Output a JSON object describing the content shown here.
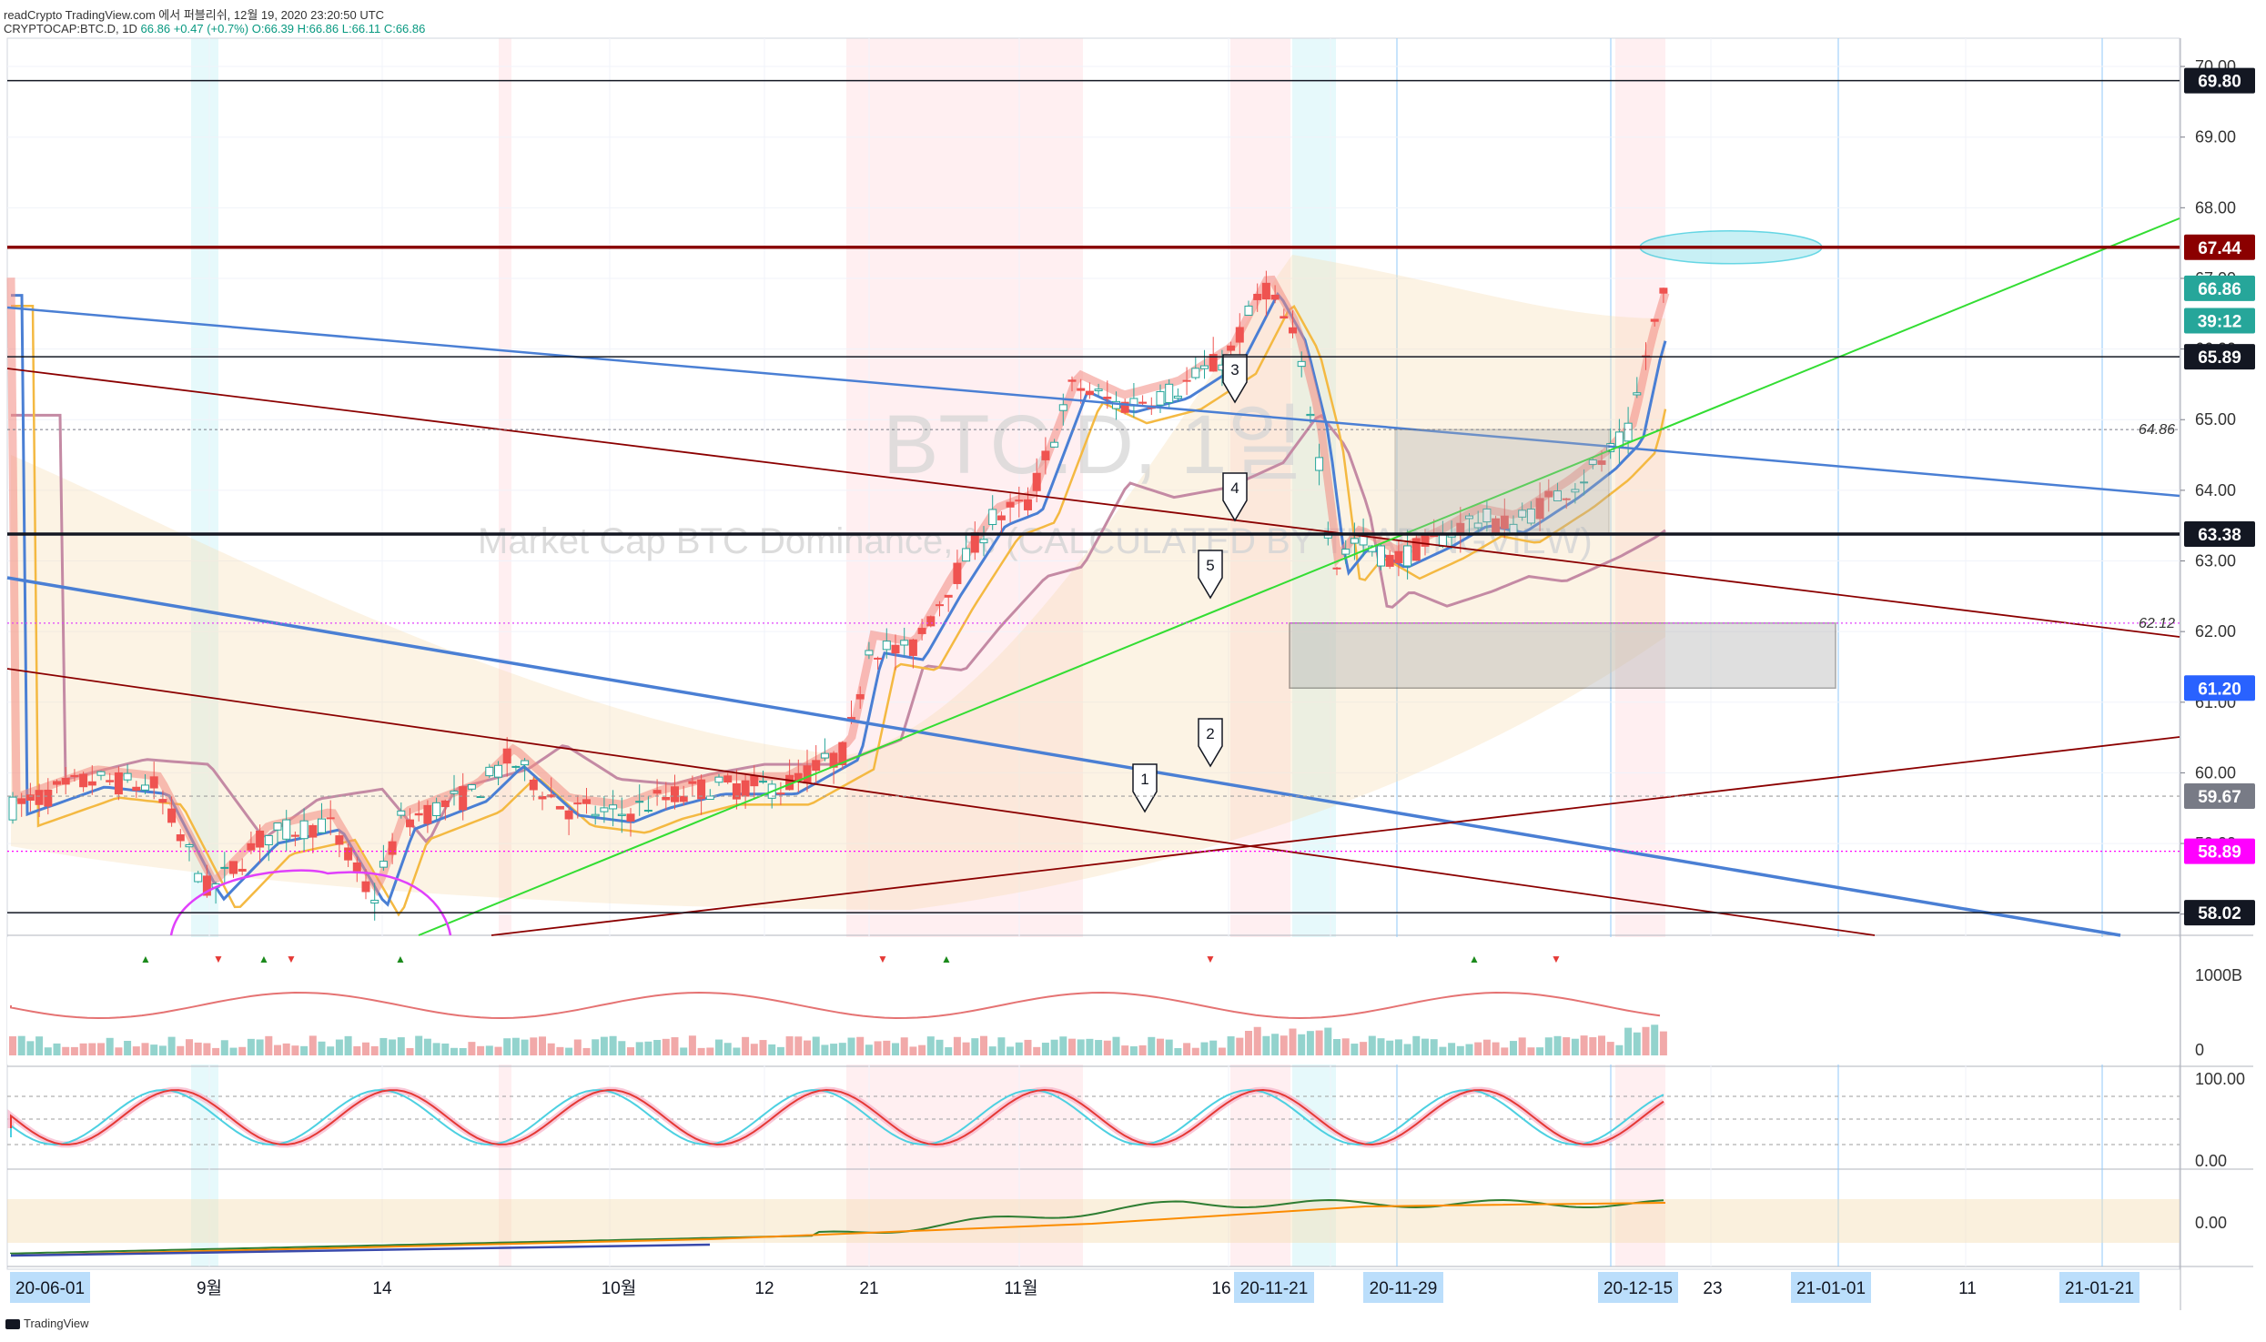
{
  "header": {
    "line1": "readCrypto TradingView.com 에서 퍼블리쉬, 12월 19, 2020 23:20:50 UTC",
    "symbol": "CRYPTOCAP:BTC.D, 1D",
    "last": "66.86",
    "change": "+0.47 (+0.7%)",
    "open": "O:66.39",
    "high": "H:66.86",
    "low": "L:66.11",
    "close": "C:66.86"
  },
  "watermark": {
    "symbol": "BTC.D, 1일",
    "description": "Market Cap BTC Dominance, % (CALCULATED BY TRADINGVIEW)"
  },
  "price_scale": {
    "ticks": [
      "70.00",
      "69.00",
      "68.00",
      "67.00",
      "66.00",
      "65.00",
      "64.00",
      "63.00",
      "62.00",
      "61.00",
      "60.00",
      "59.00",
      "58.00"
    ],
    "labels": [
      {
        "text": "69.80",
        "value": 69.8,
        "bg": "#131722",
        "fg": "#ffffff"
      },
      {
        "text": "67.44",
        "value": 67.44,
        "bg": "#8b0000",
        "fg": "#ffffff"
      },
      {
        "text": "66.86",
        "value": 66.86,
        "bg": "#26a69a",
        "fg": "#ffffff"
      },
      {
        "text": "39:12",
        "value": 66.4,
        "bg": "#26a69a",
        "fg": "#ffffff"
      },
      {
        "text": "65.89",
        "value": 65.89,
        "bg": "#131722",
        "fg": "#ffffff"
      },
      {
        "text": "63.38",
        "value": 63.38,
        "bg": "#131722",
        "fg": "#ffffff"
      },
      {
        "text": "61.20",
        "value": 61.2,
        "bg": "#2962ff",
        "fg": "#ffffff"
      },
      {
        "text": "59.67",
        "value": 59.67,
        "bg": "#787b86",
        "fg": "#ffffff"
      },
      {
        "text": "58.89",
        "value": 58.89,
        "bg": "#ff00ff",
        "fg": "#ffffff"
      },
      {
        "text": "58.02",
        "value": 58.02,
        "bg": "#131722",
        "fg": "#ffffff"
      }
    ],
    "inline_labels": [
      {
        "text": "64.86",
        "value": 64.86
      },
      {
        "text": "62.12",
        "value": 62.12
      }
    ]
  },
  "volume_scale": [
    "1000B",
    "0"
  ],
  "stoch_scale": [
    "100.00",
    "0.00"
  ],
  "bottom_scale": [
    "0.00"
  ],
  "time_axis": [
    {
      "text": "20-06-01",
      "highlight": true
    },
    {
      "text": "9월",
      "highlight": false
    },
    {
      "text": "14",
      "highlight": false
    },
    {
      "text": "10월",
      "highlight": false
    },
    {
      "text": "12",
      "highlight": false
    },
    {
      "text": "21",
      "highlight": false
    },
    {
      "text": "11월",
      "highlight": false
    },
    {
      "text": "16",
      "highlight": false
    },
    {
      "text": "20-11-21",
      "highlight": true
    },
    {
      "text": "20-11-29",
      "highlight": true
    },
    {
      "text": "20-12-15",
      "highlight": true
    },
    {
      "text": "23",
      "highlight": false
    },
    {
      "text": "21-01-01",
      "highlight": true
    },
    {
      "text": "11",
      "highlight": false
    },
    {
      "text": "21-01-21",
      "highlight": true
    }
  ],
  "callouts": [
    "1",
    "2",
    "3",
    "4",
    "5"
  ],
  "footer": "TradingView",
  "colors": {
    "up": "#26a69a",
    "down": "#ef5350",
    "grid": "#f0f3fa",
    "support": "#8b0000",
    "trend_blue": "#4a7fd4",
    "trend_green": "#33dd33",
    "cyan": "#80deea"
  },
  "chart_data": {
    "type": "candlestick",
    "title": "Market Cap BTC Dominance, % (CALCULATED BY TRADINGVIEW)",
    "ylim": [
      57.7,
      70.4
    ],
    "horizontal_levels": [
      69.8,
      67.44,
      65.89,
      64.86,
      63.38,
      62.12,
      61.2,
      59.67,
      58.89,
      58.02
    ],
    "last_candle": {
      "open": 66.39,
      "high": 66.86,
      "low": 66.11,
      "close": 66.86
    }
  }
}
